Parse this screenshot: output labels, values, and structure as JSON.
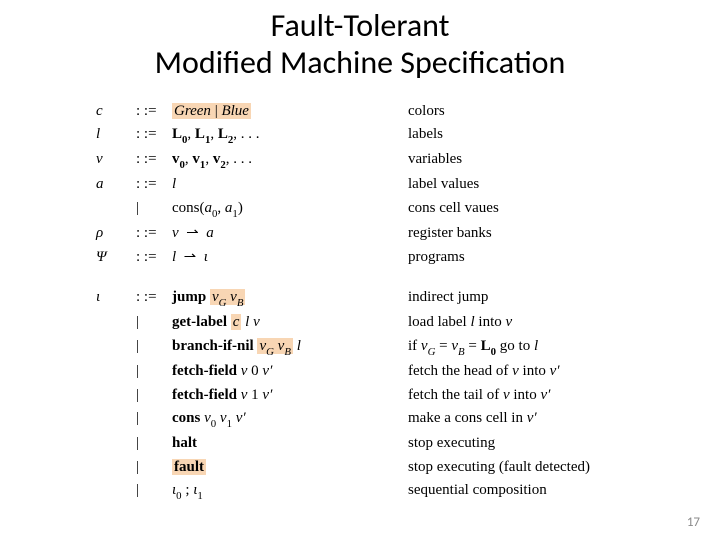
{
  "title_line1": "Fault-Tolerant",
  "title_line2": "Modified Machine Specification",
  "page_number": "17",
  "highlight_color": "#f8d6b4",
  "grammar_top": [
    {
      "sym": "c",
      "op": ": :=",
      "rhs_html": "<span class=\"hl\"><span class=\"it\">Green</span> | <span class=\"it\">Blue</span></span>",
      "desc": "colors"
    },
    {
      "sym": "l",
      "op": ": :=",
      "rhs_html": "<span class=\"bf\">L<span class=\"sub\">0</span></span>, <span class=\"bf\">L<span class=\"sub\">1</span></span>, <span class=\"bf\">L<span class=\"sub\">2</span></span>, . . .",
      "desc": "labels"
    },
    {
      "sym": "v",
      "op": ": :=",
      "rhs_html": "<span class=\"bf\">v<span class=\"sub\">0</span></span>, <span class=\"bf\">v<span class=\"sub\">1</span></span>, <span class=\"bf\">v<span class=\"sub\">2</span></span>, . . .",
      "desc": "variables"
    },
    {
      "sym": "a",
      "op": ": :=",
      "rhs_html": "<span class=\"it\">l</span>",
      "desc": "label values"
    },
    {
      "sym": "",
      "op": "|",
      "rhs_html": "cons(<span class=\"it\">a</span><span class=\"subn\">0</span>, <span class=\"it\">a</span><span class=\"subn\">1</span>)",
      "desc": "cons cell vaues"
    },
    {
      "sym": "ρ",
      "op": ": :=",
      "rhs_html": "<span class=\"it\">v</span> &nbsp;⇀&nbsp; <span class=\"it\">a</span>",
      "desc": "register banks"
    },
    {
      "sym": "Ψ",
      "op": ": :=",
      "rhs_html": "<span class=\"it\">l</span> &nbsp;⇀&nbsp; <span class=\"it\">ι</span>",
      "desc": "programs"
    }
  ],
  "grammar_bottom": [
    {
      "sym": "ι",
      "op": ": :=",
      "rhs_html": "<span class=\"bf\">jump</span> <span class=\"hl\"><span class=\"it\">v<span class=\"subn\">G</span></span> <span class=\"it\">v<span class=\"subn\">B</span></span></span>",
      "desc": "indirect jump"
    },
    {
      "sym": "",
      "op": "|",
      "rhs_html": "<span class=\"bf\">get-label</span> <span class=\"hl\"><span class=\"it\">c</span></span> <span class=\"it\">l</span> <span class=\"it\">v</span>",
      "desc_html": "load label <span class=\"it\">l</span> into <span class=\"it\">v</span>"
    },
    {
      "sym": "",
      "op": "|",
      "rhs_html": "<span class=\"bf\">branch-if-nil</span> <span class=\"hl\"><span class=\"it\">v<span class=\"subn\">G</span></span> <span class=\"it\">v<span class=\"subn\">B</span></span></span> <span class=\"it\">l</span>",
      "desc_html": "if <span class=\"it\">v<span class=\"subn\">G</span></span> = <span class=\"it\">v<span class=\"subn\">B</span></span> = <span class=\"bf\">L<span class=\"sub\">0</span></span> go to <span class=\"it\">l</span>"
    },
    {
      "sym": "",
      "op": "|",
      "rhs_html": "<span class=\"bf\">fetch-field</span> <span class=\"it\">v</span> 0 <span class=\"it\">v&prime;</span>",
      "desc_html": "fetch the head of <span class=\"it\">v</span> into <span class=\"it\">v&prime;</span>"
    },
    {
      "sym": "",
      "op": "|",
      "rhs_html": "<span class=\"bf\">fetch-field</span> <span class=\"it\">v</span> 1 <span class=\"it\">v&prime;</span>",
      "desc_html": "fetch the tail of <span class=\"it\">v</span> into <span class=\"it\">v&prime;</span>"
    },
    {
      "sym": "",
      "op": "|",
      "rhs_html": "<span class=\"bf\">cons</span> <span class=\"it\">v</span><span class=\"subn\">0</span> <span class=\"it\">v</span><span class=\"subn\">1</span> <span class=\"it\">v&prime;</span>",
      "desc_html": "make a cons cell in <span class=\"it\">v&prime;</span>"
    },
    {
      "sym": "",
      "op": "|",
      "rhs_html": "<span class=\"bf\">halt</span>",
      "desc": "stop executing"
    },
    {
      "sym": "",
      "op": "|",
      "rhs_html": "<span class=\"hl\"><span class=\"bf\">fault</span></span>",
      "desc": "stop executing (fault detected)"
    },
    {
      "sym": "",
      "op": "|",
      "rhs_html": "<span class=\"it\">ι</span><span class=\"subn\">0</span> ; <span class=\"it\">ι</span><span class=\"subn\">1</span>",
      "desc": "sequential composition"
    }
  ]
}
